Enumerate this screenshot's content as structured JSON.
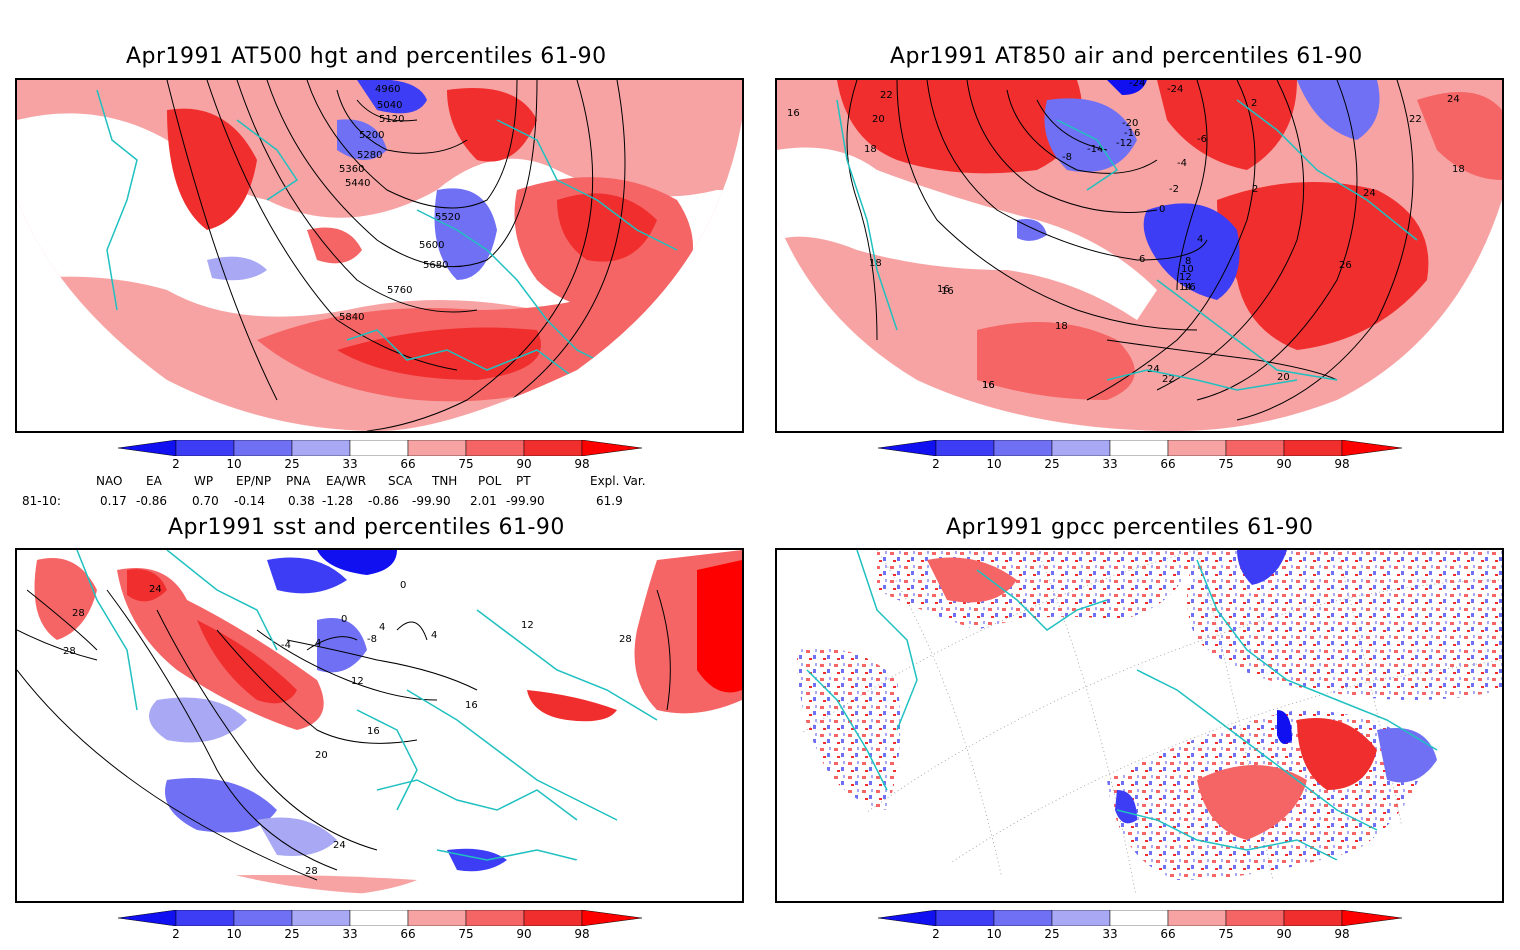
{
  "panels": {
    "p1": {
      "title": "Apr1991 AT500 hgt and percentiles 61-90",
      "contour_labels": [
        "4960",
        "5040",
        "5120",
        "5200",
        "5280",
        "5360",
        "5440",
        "5520",
        "5600",
        "5680",
        "5760",
        "5840"
      ]
    },
    "p2": {
      "title": "Apr1991 AT850 air and percentiles 61-90",
      "contour_labels": [
        "22",
        "20",
        "18",
        "16",
        "18",
        "16",
        "18",
        "16",
        "-24",
        "-24",
        "-20",
        "-16",
        "-12",
        "-8",
        "-14",
        "-4",
        "-6",
        "2",
        "-2",
        "0",
        "4",
        "6",
        "8",
        "10",
        "12",
        "14",
        "16",
        "2",
        "24",
        "22",
        "24",
        "26",
        "18",
        "24",
        "22",
        "20",
        "16",
        "16"
      ]
    },
    "p3": {
      "title": "Apr1991 sst and percentiles 61-90",
      "contour_labels": [
        "24",
        "28",
        "28",
        "0",
        "4",
        "-8",
        "0",
        "4",
        "4",
        "-4",
        "12",
        "16",
        "20",
        "24",
        "28",
        "16",
        "12",
        "28"
      ]
    },
    "p4": {
      "title": "Apr1991 gpcc percentiles 61-90"
    }
  },
  "colorbar": {
    "ticks": [
      "2",
      "10",
      "25",
      "33",
      "66",
      "75",
      "90",
      "98"
    ],
    "colors": {
      "below_2": "#1010f0",
      "2_10": "#3d3df5",
      "10_25": "#7070f5",
      "25_33": "#a8a8f5",
      "33_66": "#ffffff",
      "66_75": "#f7a3a3",
      "75_90": "#f56565",
      "90_98": "#f02e2e",
      "above_98": "#ff0000"
    }
  },
  "indices": {
    "headers": [
      "NAO",
      "EA",
      "WP",
      "EP/NP",
      "PNA",
      "EA/WR",
      "SCA",
      "TNH",
      "POL",
      "PT",
      "Expl. Var."
    ],
    "row_label": "81-10:",
    "values": [
      "0.17",
      "-0.86",
      "0.70",
      "-0.14",
      "0.38",
      "-1.28",
      "-0.86",
      "-99.90",
      "2.01",
      "-99.90",
      "61.9"
    ]
  },
  "colors": {
    "coastline": "#20c0c0",
    "contour": "#000000",
    "grid": "#999999"
  }
}
